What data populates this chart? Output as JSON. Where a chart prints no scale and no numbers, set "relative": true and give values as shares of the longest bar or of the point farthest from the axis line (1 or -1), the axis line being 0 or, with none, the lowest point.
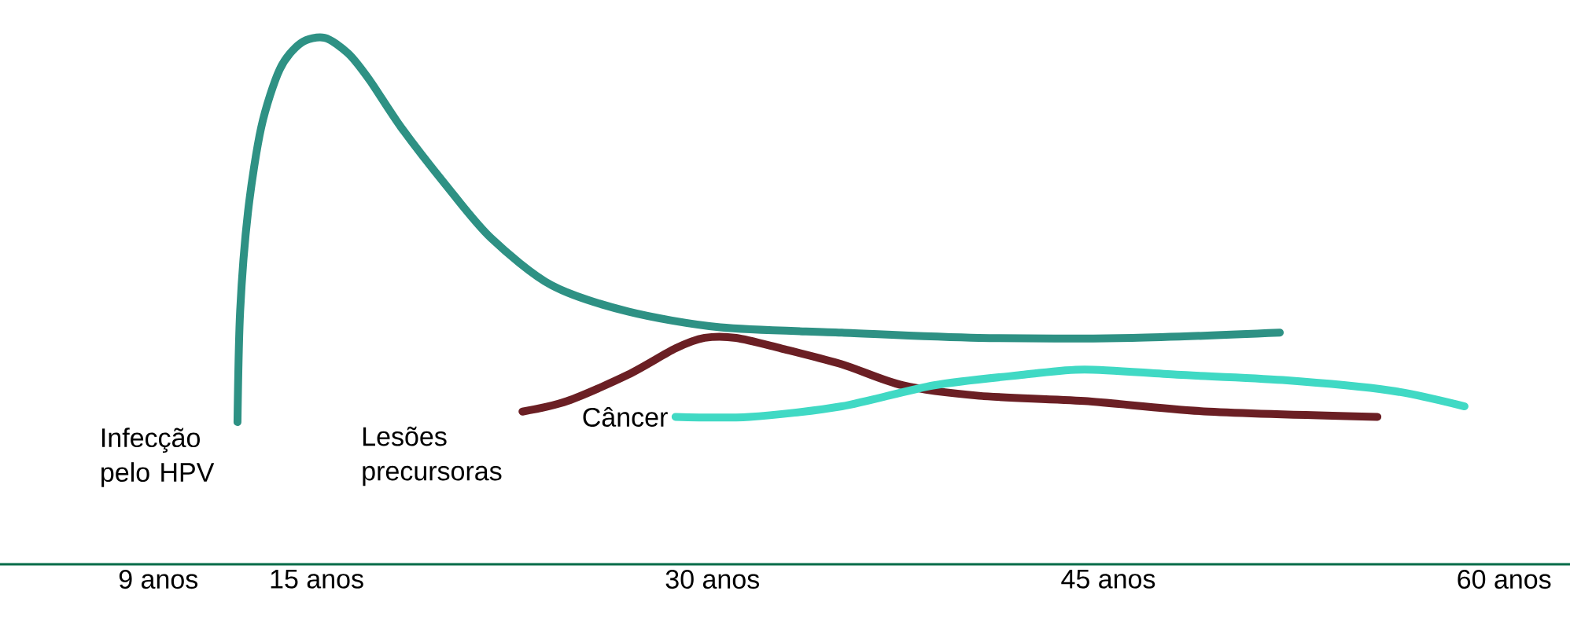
{
  "chart_data": {
    "type": "line",
    "relative": true,
    "marker": "none",
    "line_style": "solid",
    "xlim": [
      3,
      62.5
    ],
    "xticks": [
      {
        "value": 9,
        "label": "9 anos"
      },
      {
        "value": 15,
        "label": "15 anos"
      },
      {
        "value": 30,
        "label": "30 anos"
      },
      {
        "value": 45,
        "label": "45 anos"
      },
      {
        "value": 60,
        "label": "60 anos"
      }
    ],
    "series": [
      {
        "name": "Infecção pelo HPV",
        "color": "#2e9184",
        "x": [
          12.0,
          12.1,
          12.4,
          12.9,
          13.6,
          14.4,
          15.3,
          16.2,
          17.0,
          18.2,
          19.9,
          21.6,
          23.9,
          26.8,
          30.3,
          34.9,
          40.1,
          45.9,
          51.5
        ],
        "values": [
          0.27,
          0.48,
          0.67,
          0.83,
          0.94,
          0.99,
          1.0,
          0.97,
          0.92,
          0.83,
          0.72,
          0.62,
          0.53,
          0.48,
          0.45,
          0.44,
          0.43,
          0.43,
          0.44
        ]
      },
      {
        "name": "Lesões precursoras",
        "color": "#6b1f24",
        "x": [
          22.8,
          24.5,
          26.8,
          28.6,
          29.7,
          30.9,
          32.6,
          34.9,
          37.2,
          40.1,
          44.1,
          48.8,
          55.2
        ],
        "values": [
          0.29,
          0.31,
          0.36,
          0.41,
          0.43,
          0.43,
          0.41,
          0.38,
          0.34,
          0.32,
          0.31,
          0.29,
          0.28
        ]
      },
      {
        "name": "Câncer",
        "color": "#40d9c4",
        "x": [
          28.6,
          31.4,
          34.9,
          38.4,
          41.8,
          44.1,
          47.6,
          51.6,
          55.7,
          58.5
        ],
        "values": [
          0.28,
          0.28,
          0.3,
          0.34,
          0.36,
          0.37,
          0.36,
          0.35,
          0.33,
          0.3
        ]
      }
    ]
  }
}
